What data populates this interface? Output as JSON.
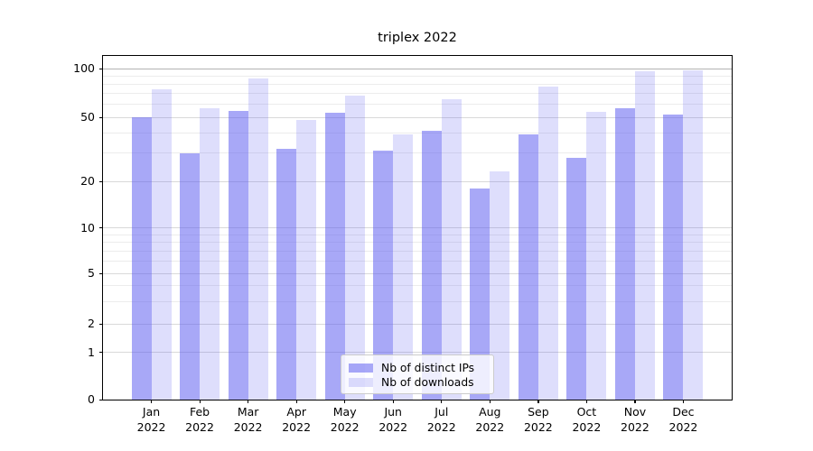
{
  "title": "triplex 2022",
  "legend": {
    "items": [
      {
        "label": "Nb of distinct IPs"
      },
      {
        "label": "Nb of downloads"
      }
    ]
  },
  "y_axis": {
    "tick_labels": [
      "100",
      "50",
      "20",
      "10",
      "5",
      "2",
      "1",
      "0"
    ]
  },
  "x_axis": {
    "tick_labels": [
      "Jan 2022",
      "Feb 2022",
      "Mar 2022",
      "Apr 2022",
      "May 2022",
      "Jun 2022",
      "Jul 2022",
      "Aug 2022",
      "Sep 2022",
      "Oct 2022",
      "Nov 2022",
      "Dec 2022"
    ]
  },
  "chart_data": {
    "type": "bar",
    "title": "triplex 2022",
    "categories": [
      "Jan 2022",
      "Feb 2022",
      "Mar 2022",
      "Apr 2022",
      "May 2022",
      "Jun 2022",
      "Jul 2022",
      "Aug 2022",
      "Sep 2022",
      "Oct 2022",
      "Nov 2022",
      "Dec 2022"
    ],
    "series": [
      {
        "name": "Nb of distinct IPs",
        "color": "rgba(90,90,240,0.53)",
        "values": [
          50,
          30,
          55,
          32,
          53,
          31,
          41,
          18,
          39,
          28,
          57,
          52
        ]
      },
      {
        "name": "Nb of downloads",
        "color": "rgba(90,90,240,0.2)",
        "values": [
          74,
          57,
          87,
          48,
          68,
          39,
          65,
          23,
          77,
          54,
          96,
          98
        ]
      }
    ],
    "yscale": "log-with-zero-baseline",
    "ylim": [
      0,
      110
    ],
    "yticks": [
      0,
      1,
      2,
      5,
      10,
      20,
      50,
      100
    ],
    "yticks_minor": [
      3,
      4,
      6,
      7,
      8,
      9,
      30,
      40,
      60,
      70,
      80,
      90
    ],
    "grid": true,
    "legend_position": "lower center"
  },
  "colors": {
    "bar_base": "#5a5af0",
    "grid_major": "#d9d9d9",
    "grid_minor": "#ececec",
    "grid_top": "#b3b3b3",
    "axis": "#000000"
  }
}
